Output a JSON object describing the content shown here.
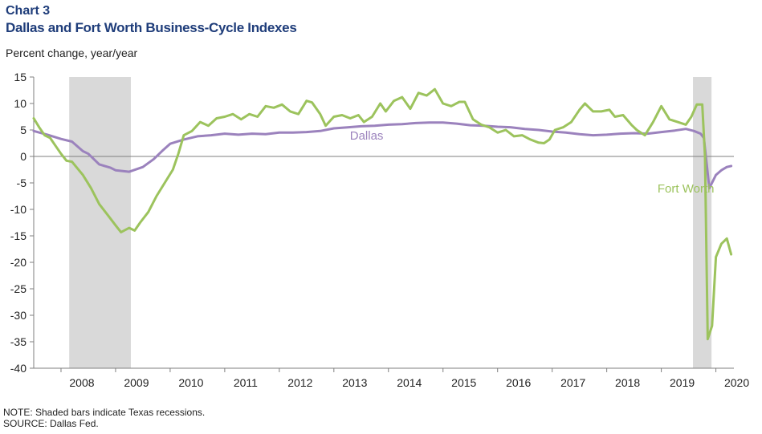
{
  "chart_number": "Chart 3",
  "title": "Dallas and Fort Worth Business-Cycle Indexes",
  "ylabel": "Percent change, year/year",
  "note": "NOTE: Shaded bars indicate Texas recessions.",
  "source": "SOURCE: Dallas Fed.",
  "colors": {
    "dallas": "#9b82bd",
    "fort_worth": "#9cc35d",
    "recession": "#d9d9d9",
    "title": "#1f3d7a"
  },
  "chart_data": {
    "type": "line",
    "ylim": [
      -40,
      15
    ],
    "yticks": [
      15,
      10,
      5,
      0,
      -5,
      -10,
      -15,
      -20,
      -25,
      -30,
      -35,
      -40
    ],
    "xlim": [
      2007.5,
      2020.33
    ],
    "xticks": [
      "2008",
      "2009",
      "2010",
      "2011",
      "2012",
      "2013",
      "2014",
      "2015",
      "2016",
      "2017",
      "2018",
      "2019",
      "2020"
    ],
    "grid": false,
    "recessions": [
      [
        2008.15,
        2009.28
      ],
      [
        2019.58,
        2019.92
      ]
    ],
    "series": [
      {
        "name": "Dallas",
        "label_at": [
          2013.6,
          3.2
        ],
        "points": [
          [
            2007.5,
            4.8
          ],
          [
            2007.75,
            4.1
          ],
          [
            2008.0,
            3.3
          ],
          [
            2008.2,
            2.8
          ],
          [
            2008.4,
            1.0
          ],
          [
            2008.5,
            0.5
          ],
          [
            2008.7,
            -1.5
          ],
          [
            2008.9,
            -2.1
          ],
          [
            2009.0,
            -2.6
          ],
          [
            2009.25,
            -2.9
          ],
          [
            2009.5,
            -2.0
          ],
          [
            2009.7,
            -0.5
          ],
          [
            2009.85,
            1.0
          ],
          [
            2010.0,
            2.4
          ],
          [
            2010.25,
            3.2
          ],
          [
            2010.5,
            3.8
          ],
          [
            2010.75,
            4.0
          ],
          [
            2011.0,
            4.3
          ],
          [
            2011.25,
            4.1
          ],
          [
            2011.5,
            4.3
          ],
          [
            2011.75,
            4.2
          ],
          [
            2012.0,
            4.5
          ],
          [
            2012.25,
            4.5
          ],
          [
            2012.5,
            4.6
          ],
          [
            2012.75,
            4.8
          ],
          [
            2013.0,
            5.3
          ],
          [
            2013.25,
            5.5
          ],
          [
            2013.5,
            5.7
          ],
          [
            2013.75,
            5.8
          ],
          [
            2014.0,
            6.0
          ],
          [
            2014.25,
            6.1
          ],
          [
            2014.5,
            6.3
          ],
          [
            2014.75,
            6.4
          ],
          [
            2015.0,
            6.4
          ],
          [
            2015.25,
            6.2
          ],
          [
            2015.5,
            5.9
          ],
          [
            2015.75,
            5.8
          ],
          [
            2016.0,
            5.6
          ],
          [
            2016.25,
            5.5
          ],
          [
            2016.5,
            5.2
          ],
          [
            2016.75,
            5.0
          ],
          [
            2017.0,
            4.7
          ],
          [
            2017.25,
            4.5
          ],
          [
            2017.5,
            4.2
          ],
          [
            2017.75,
            4.0
          ],
          [
            2018.0,
            4.1
          ],
          [
            2018.25,
            4.3
          ],
          [
            2018.5,
            4.4
          ],
          [
            2018.75,
            4.3
          ],
          [
            2019.0,
            4.6
          ],
          [
            2019.25,
            4.9
          ],
          [
            2019.45,
            5.2
          ],
          [
            2019.6,
            4.8
          ],
          [
            2019.72,
            4.3
          ],
          [
            2019.78,
            3.5
          ],
          [
            2019.88,
            -6.0
          ],
          [
            2020.0,
            -3.5
          ],
          [
            2020.1,
            -2.6
          ],
          [
            2020.2,
            -2.0
          ],
          [
            2020.28,
            -1.8
          ]
        ]
      },
      {
        "name": "Fort Worth",
        "label_at": [
          2019.45,
          -6.8
        ],
        "points": [
          [
            2007.5,
            7.2
          ],
          [
            2007.6,
            5.5
          ],
          [
            2007.7,
            4.0
          ],
          [
            2007.8,
            3.5
          ],
          [
            2007.9,
            2.0
          ],
          [
            2008.0,
            0.5
          ],
          [
            2008.1,
            -0.8
          ],
          [
            2008.2,
            -1.0
          ],
          [
            2008.4,
            -3.5
          ],
          [
            2008.55,
            -6.0
          ],
          [
            2008.7,
            -9.0
          ],
          [
            2008.85,
            -11.0
          ],
          [
            2009.0,
            -13.0
          ],
          [
            2009.1,
            -14.3
          ],
          [
            2009.25,
            -13.5
          ],
          [
            2009.35,
            -14.0
          ],
          [
            2009.45,
            -12.5
          ],
          [
            2009.6,
            -10.5
          ],
          [
            2009.75,
            -7.5
          ],
          [
            2009.9,
            -5.0
          ],
          [
            2010.05,
            -2.5
          ],
          [
            2010.15,
            0.5
          ],
          [
            2010.25,
            4.0
          ],
          [
            2010.4,
            4.8
          ],
          [
            2010.55,
            6.5
          ],
          [
            2010.7,
            5.8
          ],
          [
            2010.85,
            7.2
          ],
          [
            2011.0,
            7.5
          ],
          [
            2011.15,
            8.0
          ],
          [
            2011.3,
            7.0
          ],
          [
            2011.45,
            8.0
          ],
          [
            2011.6,
            7.5
          ],
          [
            2011.75,
            9.5
          ],
          [
            2011.9,
            9.2
          ],
          [
            2012.05,
            9.8
          ],
          [
            2012.2,
            8.5
          ],
          [
            2012.35,
            8.0
          ],
          [
            2012.5,
            10.5
          ],
          [
            2012.6,
            10.2
          ],
          [
            2012.75,
            8.0
          ],
          [
            2012.85,
            5.8
          ],
          [
            2013.0,
            7.5
          ],
          [
            2013.15,
            7.8
          ],
          [
            2013.3,
            7.2
          ],
          [
            2013.45,
            7.8
          ],
          [
            2013.55,
            6.5
          ],
          [
            2013.7,
            7.5
          ],
          [
            2013.85,
            10.0
          ],
          [
            2013.95,
            8.5
          ],
          [
            2014.1,
            10.5
          ],
          [
            2014.25,
            11.2
          ],
          [
            2014.4,
            9.0
          ],
          [
            2014.55,
            12.0
          ],
          [
            2014.7,
            11.5
          ],
          [
            2014.85,
            12.7
          ],
          [
            2015.0,
            10.0
          ],
          [
            2015.15,
            9.5
          ],
          [
            2015.3,
            10.3
          ],
          [
            2015.4,
            10.3
          ],
          [
            2015.55,
            7.0
          ],
          [
            2015.7,
            6.0
          ],
          [
            2015.85,
            5.5
          ],
          [
            2016.0,
            4.5
          ],
          [
            2016.15,
            5.0
          ],
          [
            2016.3,
            3.8
          ],
          [
            2016.45,
            4.0
          ],
          [
            2016.6,
            3.2
          ],
          [
            2016.75,
            2.6
          ],
          [
            2016.85,
            2.5
          ],
          [
            2016.95,
            3.2
          ],
          [
            2017.05,
            5.0
          ],
          [
            2017.2,
            5.5
          ],
          [
            2017.35,
            6.5
          ],
          [
            2017.5,
            8.8
          ],
          [
            2017.6,
            10.0
          ],
          [
            2017.75,
            8.5
          ],
          [
            2017.9,
            8.5
          ],
          [
            2018.05,
            8.8
          ],
          [
            2018.15,
            7.5
          ],
          [
            2018.3,
            7.8
          ],
          [
            2018.45,
            6.0
          ],
          [
            2018.55,
            5.0
          ],
          [
            2018.7,
            4.0
          ],
          [
            2018.85,
            6.5
          ],
          [
            2019.0,
            9.5
          ],
          [
            2019.15,
            7.0
          ],
          [
            2019.3,
            6.5
          ],
          [
            2019.45,
            6.0
          ],
          [
            2019.55,
            7.5
          ],
          [
            2019.65,
            9.8
          ],
          [
            2019.75,
            9.8
          ],
          [
            2019.8,
            0.0
          ],
          [
            2019.85,
            -34.5
          ],
          [
            2019.93,
            -32.0
          ],
          [
            2020.0,
            -19.0
          ],
          [
            2020.1,
            -16.5
          ],
          [
            2020.2,
            -15.5
          ],
          [
            2020.28,
            -18.5
          ]
        ]
      }
    ]
  }
}
